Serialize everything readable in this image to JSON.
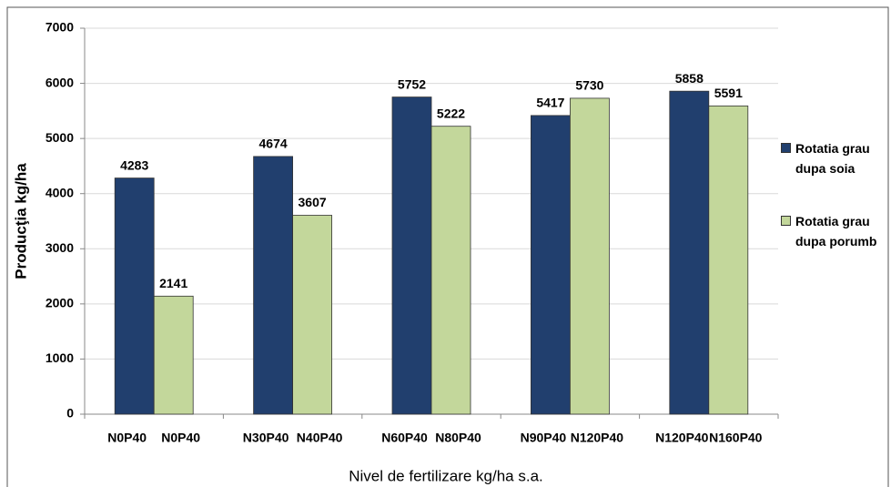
{
  "chart_data": {
    "type": "bar",
    "x_label": "Nivel de fertilizare kg/ha s.a.",
    "y_label": "Producţia kg/ha",
    "series": [
      {
        "name": "Rotatia grau dupa soia",
        "color": "#213f6e",
        "labels": [
          "N0P40",
          "N30P40",
          "N60P40",
          "N90P40",
          "N120P40"
        ],
        "values": [
          4283,
          4674,
          5752,
          5417,
          5858
        ]
      },
      {
        "name": "Rotatia grau dupa porumb",
        "color": "#c3d79b",
        "labels": [
          "N0P40",
          "N40P40",
          "N80P40",
          "N120P40",
          "N160P40"
        ],
        "values": [
          2141,
          3607,
          5222,
          5730,
          5591
        ]
      }
    ],
    "ylim": [
      0,
      7000
    ],
    "yticks": [
      0,
      1000,
      2000,
      3000,
      4000,
      5000,
      6000,
      7000
    ],
    "grid": true,
    "legend": "right"
  }
}
